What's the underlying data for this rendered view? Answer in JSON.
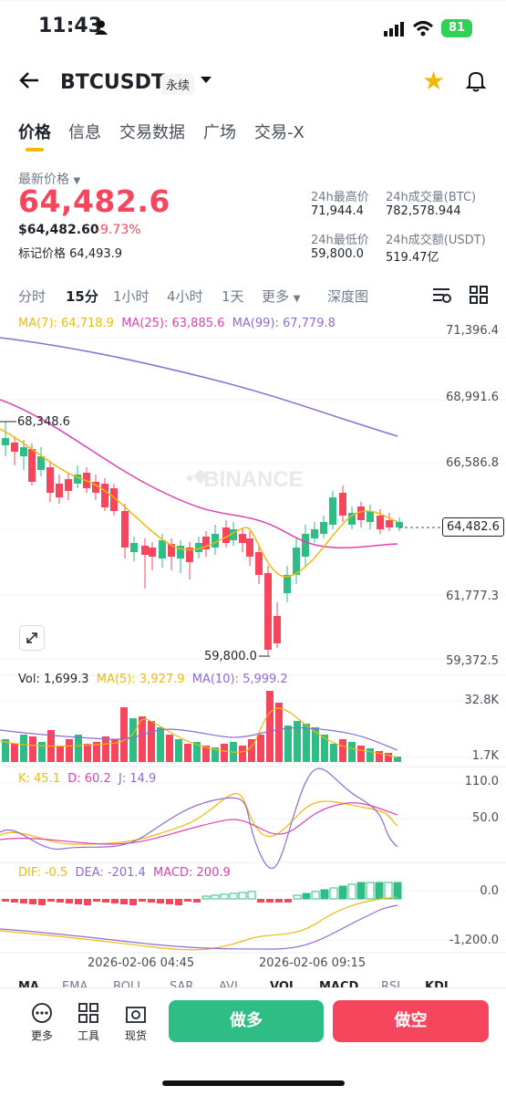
{
  "status": {
    "time": "11:43",
    "battery": "81"
  },
  "header": {
    "symbol": "BTCUSDT",
    "tag": "永续"
  },
  "tabs": [
    "价格",
    "信息",
    "交易数据",
    "广场",
    "交易-X"
  ],
  "price": {
    "latest_label": "最新价格",
    "last": "64,482.6",
    "usd": "$64,482.60",
    "change": "-9.73%",
    "mark_label": "标记价格",
    "mark": "64,493.9"
  },
  "stats": {
    "high_label": "24h最高价",
    "high": "71,944.4",
    "low_label": "24h最低价",
    "low": "59,800.0",
    "vol_btc_label": "24h成交量(BTC)",
    "vol_btc": "782,578.944",
    "vol_usdt_label": "24h成交额(USDT)",
    "vol_usdt": "519.47亿"
  },
  "intervals": [
    "分时",
    "15分",
    "1小时",
    "4小时",
    "1天",
    "更多",
    "深度图"
  ],
  "ma": {
    "ma7": "MA(7): 64,718.9",
    "ma25": "MA(25): 63,885.6",
    "ma99": "MA(99): 67,779.8"
  },
  "price_axis": [
    "71,396.4",
    "68,991.6",
    "66,586.8",
    "64,482.6",
    "61,777.3",
    "59,372.5"
  ],
  "annotations": {
    "high": "68,348.6",
    "low": "59,800.0",
    "watermark": "BINANCE"
  },
  "vol": {
    "vol": "Vol: 1,699.3",
    "ma5": "MA(5): 3,927.9",
    "ma10": "MA(10): 5,999.2",
    "axis_top": "32.8K",
    "axis_bottom": "1.7K"
  },
  "kdj": {
    "k": "K: 45.1",
    "d": "D: 60.2",
    "j": "J: 14.9",
    "axis_top": "110.0",
    "axis_mid": "50.0"
  },
  "macd": {
    "dif": "DIF: -0.5",
    "dea": "DEA: -201.4",
    "macd": "MACD: 200.9",
    "axis_top": "0.0",
    "axis_bottom": "-1,200.0"
  },
  "time_axis": [
    "2026-02-06 04:45",
    "2026-02-06 09:15"
  ],
  "subtabs": [
    "MA",
    "EMA",
    "BOLL",
    "SAR",
    "AVL",
    "VOL",
    "MACD",
    "RSI",
    "KDJ"
  ],
  "bottom": {
    "more": "更多",
    "tools": "工具",
    "spot": "现货",
    "long": "做多",
    "short": "做空"
  },
  "colors": {
    "up": "#2ebd85",
    "down": "#f6465d",
    "accent": "#f0b90b",
    "ma7": "#f0b90b",
    "ma25": "#e040b0",
    "ma99": "#8e6bd0"
  }
}
